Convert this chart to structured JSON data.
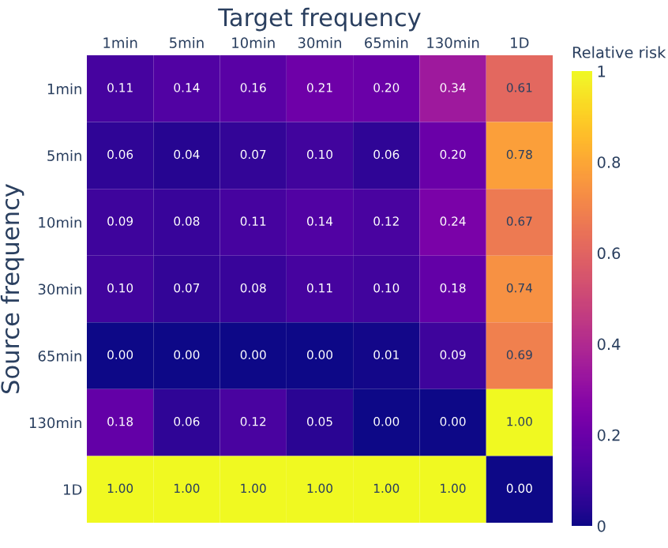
{
  "chart_data": {
    "type": "heatmap",
    "xlabel": "Target frequency",
    "ylabel": "Source frequency",
    "clabel": "Relative risk",
    "categories": [
      "1min",
      "5min",
      "10min",
      "30min",
      "65min",
      "130min",
      "1D"
    ],
    "y_categories": [
      "1min",
      "5min",
      "10min",
      "30min",
      "65min",
      "130min",
      "1D"
    ],
    "cells": [
      [
        0.11,
        0.14,
        0.16,
        0.21,
        0.2,
        0.34,
        0.61
      ],
      [
        0.06,
        0.04,
        0.07,
        0.1,
        0.06,
        0.2,
        0.78
      ],
      [
        0.09,
        0.08,
        0.11,
        0.14,
        0.12,
        0.24,
        0.67
      ],
      [
        0.1,
        0.07,
        0.08,
        0.11,
        0.1,
        0.18,
        0.74
      ],
      [
        0.0,
        0.0,
        0.0,
        0.0,
        0.01,
        0.09,
        0.69
      ],
      [
        0.18,
        0.06,
        0.12,
        0.05,
        0.0,
        0.0,
        1.0
      ],
      [
        1.0,
        1.0,
        1.0,
        1.0,
        1.0,
        1.0,
        0.0
      ]
    ],
    "cell_labels": [
      [
        "0.11",
        "0.14",
        "0.16",
        "0.21",
        "0.20",
        "0.34",
        "0.61"
      ],
      [
        "0.06",
        "0.04",
        "0.07",
        "0.10",
        "0.06",
        "0.20",
        "0.78"
      ],
      [
        "0.09",
        "0.08",
        "0.11",
        "0.14",
        "0.12",
        "0.24",
        "0.67"
      ],
      [
        "0.10",
        "0.07",
        "0.08",
        "0.11",
        "0.10",
        "0.18",
        "0.74"
      ],
      [
        "0.00",
        "0.00",
        "0.00",
        "0.00",
        "0.01",
        "0.09",
        "0.69"
      ],
      [
        "0.18",
        "0.06",
        "0.12",
        "0.05",
        "0.00",
        "0.00",
        "1.00"
      ],
      [
        "1.00",
        "1.00",
        "1.00",
        "1.00",
        "1.00",
        "1.00",
        "0.00"
      ]
    ],
    "clim": [
      0,
      1
    ],
    "cticks": [
      0,
      0.2,
      0.4,
      0.6,
      0.8,
      1
    ]
  }
}
